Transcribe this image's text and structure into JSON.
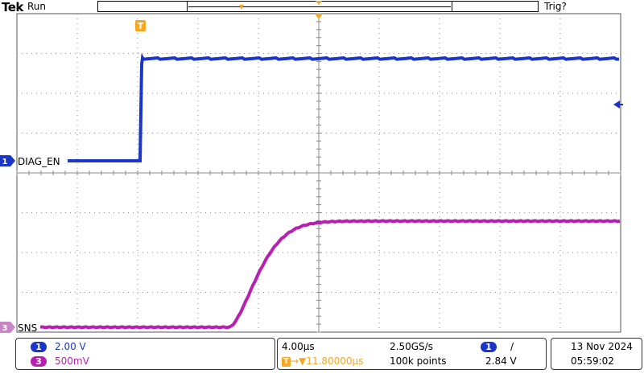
{
  "top": {
    "logo": "Tek",
    "state": "Run",
    "trigger_status": "Trig?"
  },
  "traces": {
    "ch1": {
      "label": "DIAG_EN",
      "number": "1",
      "color": "#1a35c8"
    },
    "ch3": {
      "label": "SNS",
      "number": "3",
      "color": "#b81fb0"
    }
  },
  "markers": {
    "trigger_marker": "T"
  },
  "footer": {
    "ch1_num": "1",
    "ch1_scale": "2.00 V",
    "ch3_num": "3",
    "ch3_scale": "500mV",
    "timebase": "4.00µs",
    "delay_marker": "T",
    "delay": "→▼11.80000µs",
    "sample_rate": "2.50GS/s",
    "record_length": "100k points",
    "trig_source": "1",
    "trig_slope": "/",
    "trig_level": "2.84 V",
    "date": "13 Nov 2024",
    "time": "05:59:02"
  },
  "colors": {
    "ch1": "#1a35c8",
    "ch3": "#b81fb0",
    "trigger": "#f5a623",
    "grid": "#7a7a7a"
  }
}
